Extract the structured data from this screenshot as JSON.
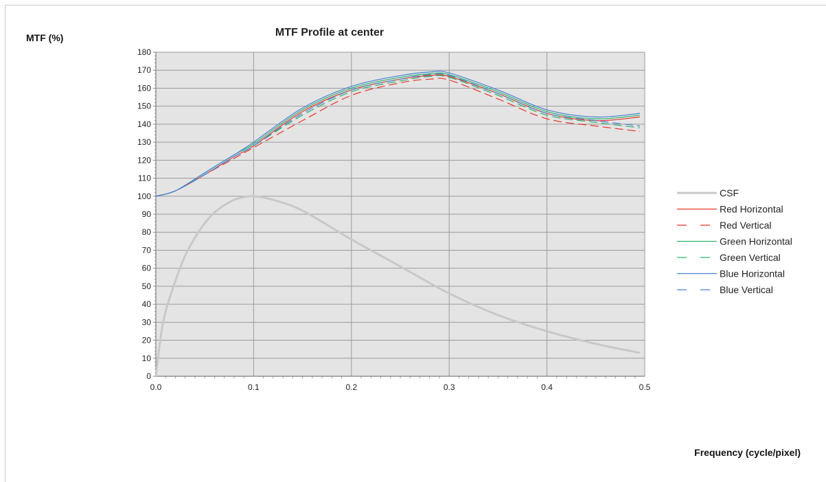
{
  "chart_data": {
    "type": "line",
    "title": "MTF Profile at center",
    "ylabel": "MTF (%)",
    "xlabel": "Frequency (cycle/pixel)",
    "xlim": [
      0,
      0.5
    ],
    "ylim": [
      0,
      180
    ],
    "x_ticks": [
      0.0,
      0.1,
      0.2,
      0.3,
      0.4,
      0.5
    ],
    "x_tick_labels": [
      "0.0",
      "0.1",
      "0.2",
      "0.3",
      "0.4",
      "0.5"
    ],
    "y_ticks": [
      0,
      10,
      20,
      30,
      40,
      50,
      60,
      70,
      80,
      90,
      100,
      110,
      120,
      130,
      140,
      150,
      160,
      170,
      180
    ],
    "grid": true,
    "legend_position": "right",
    "series": [
      {
        "name": "CSF",
        "color": "#c8c8c8",
        "dash": "solid",
        "width": 3,
        "x": [
          0.0,
          0.005,
          0.01,
          0.02,
          0.03,
          0.04,
          0.05,
          0.06,
          0.07,
          0.08,
          0.09,
          0.1,
          0.12,
          0.15,
          0.2,
          0.25,
          0.3,
          0.35,
          0.4,
          0.45,
          0.495
        ],
        "y": [
          0,
          22,
          36,
          53,
          67,
          77,
          85,
          91,
          95,
          98,
          99.5,
          100,
          98,
          92,
          76,
          61,
          46,
          34,
          25,
          18,
          13
        ]
      },
      {
        "name": "Red Horizontal",
        "color": "#e8322a",
        "dash": "solid",
        "width": 1.2,
        "x": [
          0.0,
          0.02,
          0.05,
          0.08,
          0.1,
          0.15,
          0.2,
          0.25,
          0.28,
          0.3,
          0.35,
          0.4,
          0.45,
          0.495
        ],
        "y": [
          100,
          103,
          112,
          122,
          128,
          147,
          159,
          165,
          167,
          166.5,
          157,
          146,
          142,
          144
        ]
      },
      {
        "name": "Red Vertical",
        "color": "#e8322a",
        "dash": "dashed",
        "width": 1.2,
        "x": [
          0.0,
          0.02,
          0.05,
          0.08,
          0.1,
          0.15,
          0.2,
          0.25,
          0.28,
          0.3,
          0.35,
          0.4,
          0.45,
          0.495
        ],
        "y": [
          100,
          103,
          112,
          121,
          127,
          142,
          156,
          163,
          165,
          164.5,
          154,
          143,
          139,
          136
        ]
      },
      {
        "name": "Green Horizontal",
        "color": "#2db36a",
        "dash": "solid",
        "width": 1.2,
        "x": [
          0.0,
          0.02,
          0.05,
          0.08,
          0.1,
          0.15,
          0.2,
          0.25,
          0.28,
          0.3,
          0.35,
          0.4,
          0.45,
          0.495
        ],
        "y": [
          100,
          103,
          113,
          123,
          129,
          148,
          160,
          166,
          168,
          167.5,
          158,
          147,
          143,
          145
        ]
      },
      {
        "name": "Green Vertical",
        "color": "#2db36a",
        "dash": "dashed",
        "width": 1.2,
        "x": [
          0.0,
          0.02,
          0.05,
          0.08,
          0.1,
          0.15,
          0.2,
          0.25,
          0.28,
          0.3,
          0.35,
          0.4,
          0.45,
          0.495
        ],
        "y": [
          100,
          103,
          112,
          122,
          128,
          145,
          158,
          164,
          166.5,
          166,
          156,
          145,
          141,
          138
        ]
      },
      {
        "name": "Blue Horizontal",
        "color": "#4a7fd4",
        "dash": "solid",
        "width": 1.2,
        "x": [
          0.0,
          0.02,
          0.05,
          0.08,
          0.1,
          0.15,
          0.2,
          0.25,
          0.28,
          0.3,
          0.35,
          0.4,
          0.45,
          0.495
        ],
        "y": [
          100,
          103,
          113,
          123,
          130,
          149,
          161,
          167,
          169,
          168.5,
          159,
          148,
          144,
          146
        ]
      },
      {
        "name": "Blue Vertical",
        "color": "#4a7fd4",
        "dash": "dashed",
        "width": 1.2,
        "x": [
          0.0,
          0.02,
          0.05,
          0.08,
          0.1,
          0.15,
          0.2,
          0.25,
          0.28,
          0.3,
          0.35,
          0.4,
          0.45,
          0.495
        ],
        "y": [
          100,
          103,
          112,
          122,
          128,
          146,
          159,
          165,
          167.5,
          167,
          157,
          146,
          142,
          139
        ]
      }
    ]
  },
  "colors": {
    "plot_background": "#e4e4e4",
    "grid_line": "#9a9a9a",
    "axis_line": "#7f7f7f"
  }
}
